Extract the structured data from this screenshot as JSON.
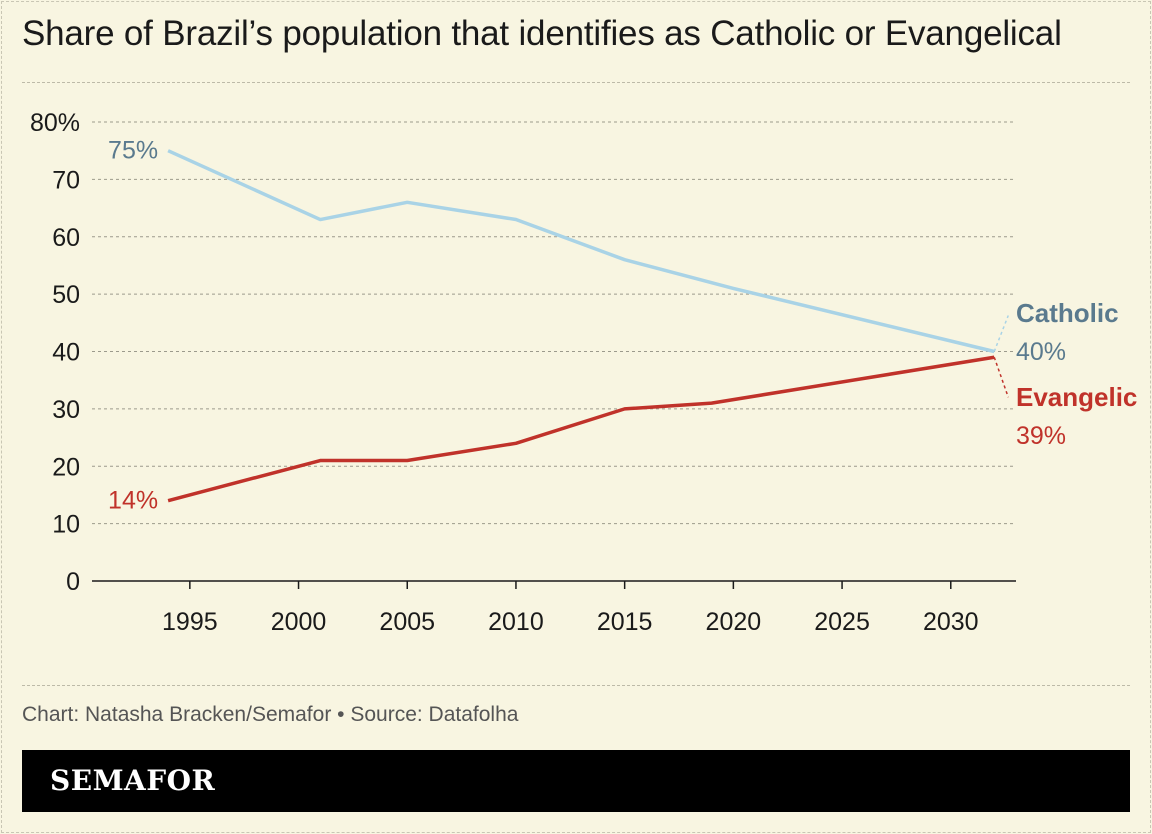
{
  "title": "Share of Brazil’s population that identifies as Catholic or Evangelical",
  "credit": "Chart: Natasha Bracken/Semafor • Source: Datafolha",
  "brand": "SEMAFOR",
  "colors": {
    "background": "#f8f5e1",
    "catholic_line": "#a9d3e6",
    "catholic_text": "#5a7a8e",
    "evangelical": "#c0322a"
  },
  "chart_data": {
    "type": "line",
    "title": "Share of Brazil’s population that identifies as Catholic or Evangelical",
    "xlabel": "",
    "ylabel": "",
    "xlim": [
      1990.5,
      2033
    ],
    "ylim": [
      0,
      80
    ],
    "x_ticks": [
      1995,
      2000,
      2005,
      2010,
      2015,
      2020,
      2025,
      2030
    ],
    "x_tick_labels": [
      "1995",
      "2000",
      "2005",
      "2010",
      "2015",
      "2020",
      "2025",
      "2030"
    ],
    "y_ticks": [
      0,
      10,
      20,
      30,
      40,
      50,
      60,
      70,
      80
    ],
    "y_tick_labels": [
      "0",
      "10",
      "20",
      "30",
      "40",
      "50",
      "60",
      "70",
      "80%"
    ],
    "grid": true,
    "series": [
      {
        "name": "Catholic",
        "points": [
          [
            1994,
            75
          ],
          [
            2001,
            63
          ],
          [
            2005,
            66
          ],
          [
            2010,
            63
          ],
          [
            2015,
            56
          ],
          [
            2020,
            51
          ],
          [
            2032,
            40
          ]
        ],
        "start_label": "75%",
        "end_name": "Catholic",
        "end_value_label": "40%"
      },
      {
        "name": "Evangelic",
        "points": [
          [
            1994,
            14
          ],
          [
            2001,
            21
          ],
          [
            2005,
            21
          ],
          [
            2010,
            24
          ],
          [
            2015,
            30
          ],
          [
            2019,
            31
          ],
          [
            2032,
            39
          ]
        ],
        "start_label": "14%",
        "end_name": "Evangelic",
        "end_value_label": "39%"
      }
    ]
  }
}
